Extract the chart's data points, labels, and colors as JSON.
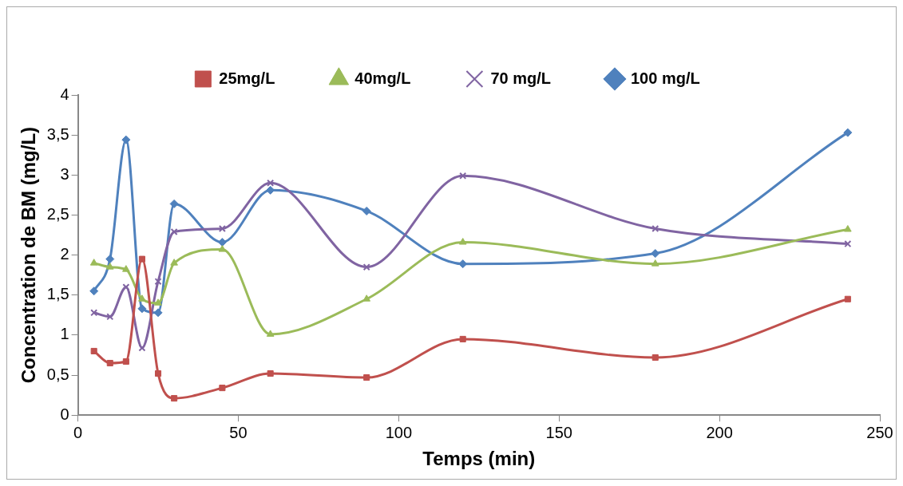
{
  "chart_data": {
    "type": "line",
    "xlabel": "Temps (min)",
    "ylabel": "Concentration de BM (mg/L)",
    "x": [
      5,
      10,
      15,
      20,
      25,
      30,
      45,
      60,
      90,
      120,
      180,
      240
    ],
    "series": [
      {
        "name": "25mg/L",
        "color": "#c0504d",
        "marker": "square",
        "values": [
          0.8,
          0.65,
          0.67,
          1.95,
          0.52,
          0.21,
          0.34,
          0.52,
          0.47,
          0.95,
          0.72,
          1.45
        ]
      },
      {
        "name": "40mg/L",
        "color": "#9bbb59",
        "marker": "triangle",
        "values": [
          1.9,
          1.85,
          1.82,
          1.45,
          1.4,
          1.9,
          2.07,
          1.01,
          1.45,
          2.16,
          1.89,
          2.32
        ]
      },
      {
        "name": "70 mg/L",
        "color": "#8064a2",
        "marker": "cross",
        "values": [
          1.28,
          1.23,
          1.6,
          0.84,
          1.67,
          2.29,
          2.33,
          2.9,
          1.85,
          2.99,
          2.33,
          2.14
        ]
      },
      {
        "name": "100 mg/L",
        "color": "#4f81bd",
        "marker": "diamond",
        "values": [
          1.55,
          1.95,
          3.44,
          1.33,
          1.28,
          2.64,
          2.16,
          2.81,
          2.55,
          1.89,
          2.02,
          3.53
        ]
      }
    ],
    "xlim": [
      0,
      250
    ],
    "xticks": [
      0,
      50,
      100,
      150,
      200,
      250
    ],
    "ylim": [
      0,
      4
    ],
    "yticks": [
      0,
      {
        "value": 0.5,
        "label": "0,5"
      },
      1,
      {
        "value": 1.5,
        "label": "1,5"
      },
      2,
      {
        "value": 2.5,
        "label": "2,5"
      },
      3,
      {
        "value": 3.5,
        "label": "3,5"
      },
      4
    ],
    "grid": false,
    "legend": "top",
    "line_style": "solid"
  }
}
